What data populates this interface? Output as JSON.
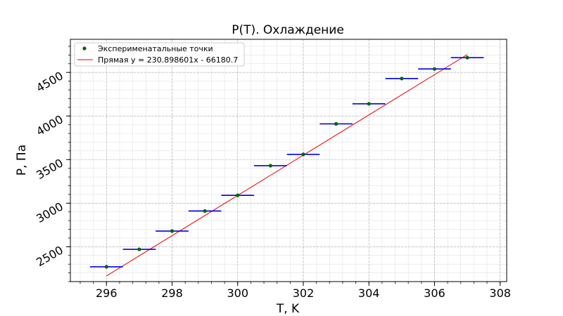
{
  "chart_data": {
    "type": "scatter",
    "title": "P(T). Охлаждение",
    "xlabel": "T, K",
    "ylabel": "P, Па",
    "xlim": [
      294.9,
      308.2
    ],
    "ylim": [
      2100,
      4880
    ],
    "xticks": [
      296,
      298,
      300,
      302,
      304,
      306,
      308
    ],
    "yticks": [
      2500,
      3000,
      3500,
      4000,
      4500
    ],
    "xtick_labels": [
      "296",
      "298",
      "300",
      "302",
      "304",
      "306",
      "308"
    ],
    "ytick_labels": [
      "2500",
      "3000",
      "3500",
      "4000",
      "4500"
    ],
    "grid": true,
    "legend_placement": "top-left",
    "series": [
      {
        "name": "Эксперименатальные точки",
        "kind": "scatter",
        "color": "#006400",
        "xerr": 0.5,
        "errcolor": "#0000ee",
        "x": [
          296,
          297,
          298,
          299,
          300,
          301,
          302,
          303,
          304,
          305,
          306,
          307
        ],
        "y": [
          2270,
          2470,
          2680,
          2910,
          3090,
          3430,
          3560,
          3910,
          4140,
          4430,
          4540,
          4670
        ]
      },
      {
        "name": "Прямая y = 230.898601x - 66180.7",
        "kind": "line",
        "color": "#ee0000",
        "slope": 230.898601,
        "intercept": -66180.7,
        "x_range": [
          296,
          307
        ]
      }
    ]
  }
}
